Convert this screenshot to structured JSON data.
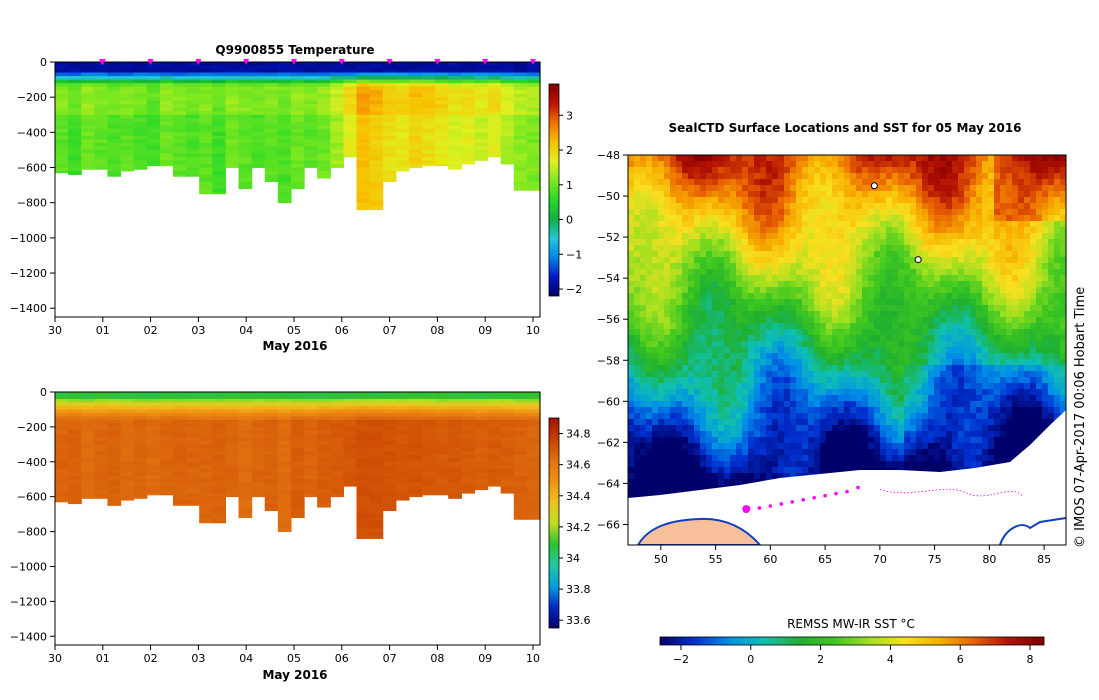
{
  "colors": {
    "temp_cmap": [
      "#00006a",
      "#0018c8",
      "#0088e8",
      "#20c8d8",
      "#10b040",
      "#28d828",
      "#80e820",
      "#e0f020",
      "#f8c000",
      "#f07000",
      "#c01000",
      "#800000"
    ],
    "sal_cmap": [
      "#00006a",
      "#0028c8",
      "#00a0e0",
      "#20c8a0",
      "#30c030",
      "#c0e020",
      "#f0c020",
      "#f09010",
      "#e07010",
      "#c84000",
      "#a01000"
    ],
    "sst_cmap": [
      "#00006a",
      "#0030d0",
      "#0090e8",
      "#10c0b0",
      "#20b030",
      "#40c820",
      "#a0e020",
      "#f8e020",
      "#f8b000",
      "#e86000",
      "#b01000",
      "#800000"
    ],
    "track": "#ff00ff",
    "land": "#f8c09a"
  },
  "chart_data": [
    {
      "type": "heatmap",
      "title": "Q9900855  Temperature",
      "xlabel": "May 2016",
      "ylabel": "",
      "x_ticks": [
        "30",
        "01",
        "02",
        "03",
        "04",
        "05",
        "06",
        "07",
        "08",
        "09",
        "10"
      ],
      "y_ticks": [
        0,
        -200,
        -400,
        -600,
        -800,
        -1000,
        -1200,
        -1400
      ],
      "ylim": [
        -1450,
        0
      ],
      "colorbar": {
        "min": -2.2,
        "max": 3.9,
        "ticks": [
          3,
          2,
          1,
          0,
          -1,
          -2
        ],
        "tick_labels": [
          "3",
          "2",
          "1",
          "0",
          "−1",
          "−2"
        ]
      },
      "profile_depths": [
        -630,
        -640,
        -610,
        -610,
        -650,
        -620,
        -610,
        -590,
        -590,
        -650,
        -650,
        -750,
        -750,
        -600,
        -720,
        -600,
        -680,
        -800,
        -720,
        -600,
        -660,
        -600,
        -540,
        -840,
        -840,
        -680,
        -620,
        -600,
        -590,
        -590,
        -610,
        -580,
        -560,
        -540,
        -580,
        -730,
        -730
      ],
      "profile_values": [
        0.9,
        0.7,
        1.0,
        0.9,
        0.8,
        0.9,
        0.8,
        0.7,
        1.0,
        0.9,
        0.8,
        0.9,
        0.7,
        1.0,
        0.9,
        0.8,
        0.9,
        0.8,
        1.0,
        0.9,
        1.0,
        1.3,
        1.7,
        2.2,
        2.1,
        1.9,
        1.8,
        2.0,
        1.9,
        1.8,
        1.6,
        1.7,
        1.5,
        1.7,
        1.4,
        1.2,
        1.1
      ],
      "surface_value": -2.0,
      "markers": [
        "30",
        "01",
        "02",
        "03",
        "04",
        "05",
        "06",
        "07",
        "08",
        "09",
        "10"
      ]
    },
    {
      "type": "heatmap",
      "title": "",
      "xlabel": "May 2016",
      "ylabel": "",
      "x_ticks": [
        "30",
        "01",
        "02",
        "03",
        "04",
        "05",
        "06",
        "07",
        "08",
        "09",
        "10"
      ],
      "y_ticks": [
        0,
        -200,
        -400,
        -600,
        -800,
        -1000,
        -1200,
        -1400
      ],
      "ylim": [
        -1450,
        0
      ],
      "colorbar": {
        "min": 33.55,
        "max": 34.9,
        "ticks": [
          34.8,
          34.6,
          34.4,
          34.2,
          34,
          33.8,
          33.6
        ],
        "tick_labels": [
          "34.8",
          "34.6",
          "34.4",
          "34.2",
          "34",
          "33.8",
          "33.6"
        ]
      },
      "profile_depths": [
        -630,
        -640,
        -610,
        -610,
        -650,
        -620,
        -610,
        -590,
        -590,
        -650,
        -650,
        -750,
        -750,
        -600,
        -720,
        -600,
        -680,
        -800,
        -720,
        -600,
        -660,
        -600,
        -540,
        -840,
        -840,
        -680,
        -620,
        -600,
        -590,
        -590,
        -610,
        -580,
        -560,
        -540,
        -580,
        -730,
        -730
      ],
      "profile_values": [
        34.66,
        34.67,
        34.64,
        34.66,
        34.67,
        34.65,
        34.66,
        34.64,
        34.66,
        34.67,
        34.66,
        34.66,
        34.67,
        34.66,
        34.64,
        34.66,
        34.67,
        34.64,
        34.68,
        34.66,
        34.68,
        34.69,
        34.7,
        34.72,
        34.72,
        34.71,
        34.7,
        34.71,
        34.7,
        34.69,
        34.7,
        34.69,
        34.68,
        34.69,
        34.68,
        34.67,
        34.66
      ],
      "surface_value": 34.05
    },
    {
      "type": "heatmap",
      "title": "SealCTD Surface Locations and SST for 05 May 2016",
      "xlabel": "",
      "ylabel": "",
      "x_ticks": [
        50,
        55,
        60,
        65,
        70,
        75,
        80,
        85
      ],
      "y_ticks": [
        -48,
        -50,
        -52,
        -54,
        -56,
        -58,
        -60,
        -62,
        -64,
        -66
      ],
      "xlim": [
        47,
        87
      ],
      "ylim": [
        -67,
        -48
      ],
      "colorbar": {
        "label": "REMSS MW-IR SST °C",
        "min": -2.6,
        "max": 8.4,
        "ticks": [
          -2,
          0,
          2,
          4,
          6,
          8
        ],
        "tick_labels": [
          "−2",
          "0",
          "2",
          "4",
          "6",
          "8"
        ]
      },
      "track_points": [
        [
          58,
          -65.2
        ],
        [
          59,
          -65.2
        ],
        [
          60,
          -65.1
        ],
        [
          61,
          -65.0
        ],
        [
          62,
          -64.9
        ],
        [
          63,
          -64.8
        ],
        [
          64,
          -64.7
        ],
        [
          65,
          -64.6
        ],
        [
          66,
          -64.5
        ],
        [
          67,
          -64.4
        ],
        [
          68,
          -64.2
        ]
      ],
      "last_position": [
        57.8,
        -65.25
      ],
      "float_positions": [
        [
          69.5,
          -49.5
        ],
        [
          73.5,
          -53.1
        ]
      ],
      "side_label": "©  IMOS 07-Apr-2017 00:06 Hobart Time"
    }
  ]
}
